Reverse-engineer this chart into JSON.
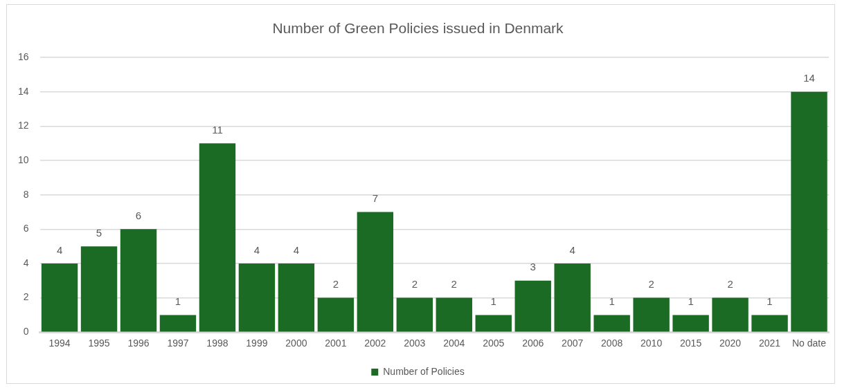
{
  "chart_data": {
    "type": "bar",
    "title": "Number of Green Policies issued in Denmark",
    "categories": [
      "1994",
      "1995",
      "1996",
      "1997",
      "1998",
      "1999",
      "2000",
      "2001",
      "2002",
      "2003",
      "2004",
      "2005",
      "2006",
      "2007",
      "2008",
      "2010",
      "2015",
      "2020",
      "2021",
      "No date"
    ],
    "series": [
      {
        "name": "Number of Policies",
        "color": "#1b6b24",
        "values": [
          4,
          5,
          6,
          1,
          11,
          4,
          4,
          2,
          7,
          2,
          2,
          1,
          3,
          4,
          1,
          2,
          1,
          2,
          1,
          14
        ]
      }
    ],
    "ylim": [
      0,
      16
    ],
    "yticks": [
      0,
      2,
      4,
      6,
      8,
      10,
      12,
      14,
      16
    ],
    "grid": "y",
    "legend": "bottom",
    "data_labels": true
  }
}
